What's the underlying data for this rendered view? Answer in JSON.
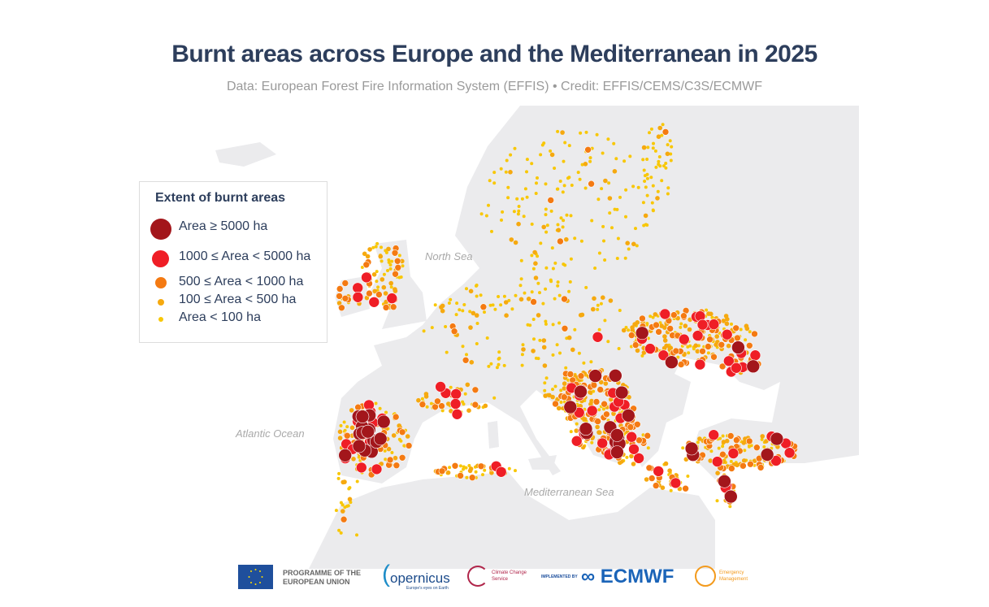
{
  "title": "Burnt areas across Europe and the Mediterranean in 2025",
  "subtitle": "Data: European Forest Fire Information System (EFFIS) • Credit: EFFIS/CEMS/C3S/ECMWF",
  "map_labels": {
    "north_sea": "North Sea",
    "atlantic": "Atlantic Ocean",
    "mediterranean": "Mediterranean Sea"
  },
  "legend": {
    "title": "Extent of burnt areas",
    "items": [
      {
        "label": "Area ≥ 5000 ha",
        "color": "#a3161b"
      },
      {
        "label": "1000 ≤ Area < 5000 ha",
        "color": "#ef1e26"
      },
      {
        "label": "500 ≤ Area < 1000 ha",
        "color": "#f47a12"
      },
      {
        "label": "100 ≤ Area < 500 ha",
        "color": "#f6a90f"
      },
      {
        "label": "Area < 100 ha",
        "color": "#f8c705"
      }
    ]
  },
  "colors": {
    "land": "#ebebed",
    "sea": "#ffffff",
    "title": "#2d3e5c"
  },
  "footer": {
    "eu": "PROGRAMME OF THE EUROPEAN UNION",
    "copernicus": "opernicus",
    "copernicus_tag": "Europe's eyes on Earth",
    "c3s": "Climate Change Service",
    "implemented_by": "IMPLEMENTED BY",
    "ecmwf": "ECMWF",
    "cems": "Emergency Management"
  }
}
